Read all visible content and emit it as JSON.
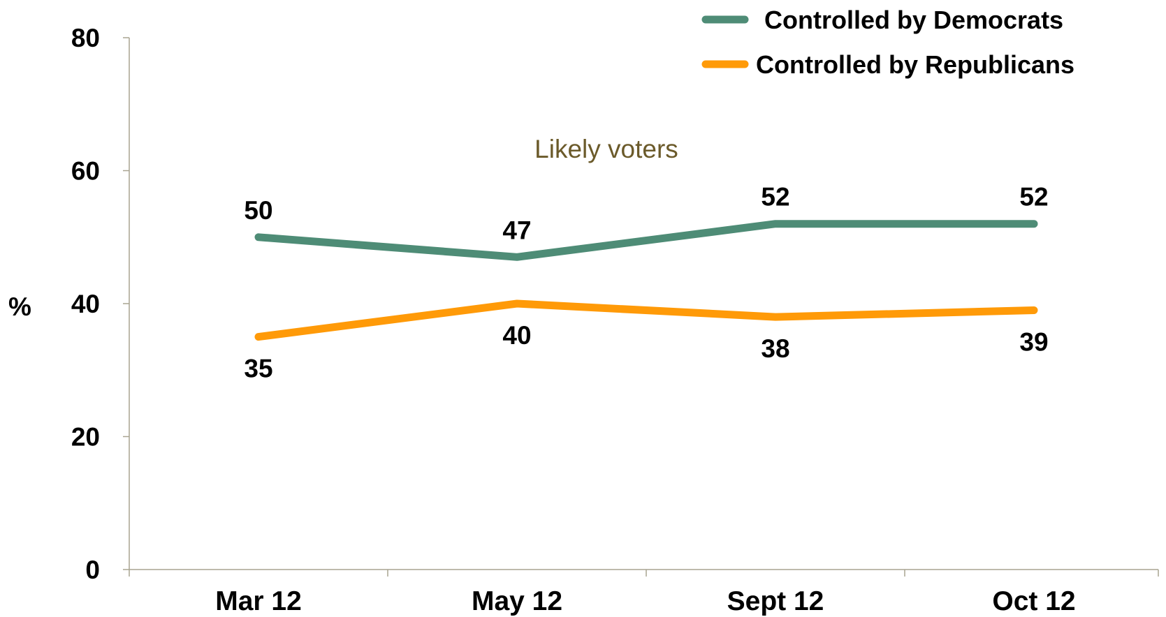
{
  "chart_data": {
    "type": "line",
    "title": "",
    "xlabel": "",
    "ylabel": "%",
    "ylim": [
      0,
      80
    ],
    "yticks": [
      0,
      20,
      40,
      60,
      80
    ],
    "categories": [
      "Mar 12",
      "May 12",
      "Sept 12",
      "Oct 12"
    ],
    "series": [
      {
        "name": "Controlled by Democrats",
        "color": "#4e8c76",
        "values": [
          50,
          47,
          52,
          52
        ],
        "labels": [
          "50",
          "47",
          "52",
          "52"
        ],
        "label_position": "above"
      },
      {
        "name": "Controlled by Republicans",
        "color": "#ff9a08",
        "values": [
          35,
          40,
          38,
          39
        ],
        "labels": [
          "35",
          "40",
          "38",
          "39"
        ],
        "label_position": "below"
      }
    ],
    "annotation": "Likely voters",
    "annotation_color": "#6b5a2a",
    "legend_placement": "top-right",
    "grid": false,
    "axis_color": "#a8a490"
  }
}
